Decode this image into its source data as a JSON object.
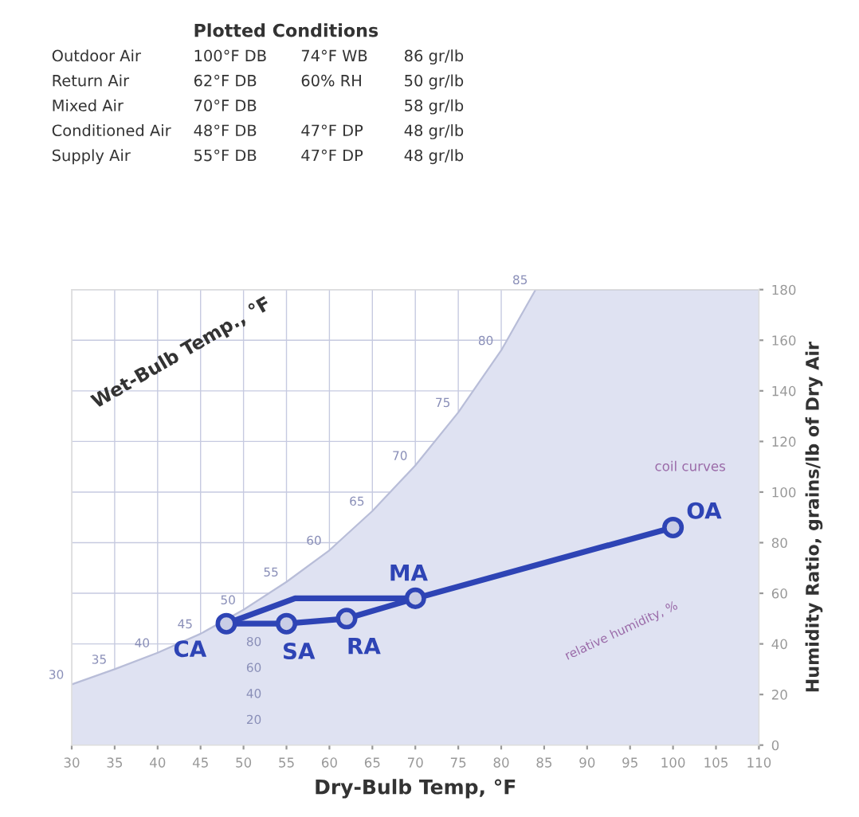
{
  "chart_data": {
    "type": "line",
    "xlabel": "Dry-Bulb Temp, °F",
    "ylabel": "Humidity Ratio, grains/lb of Dry Air",
    "xlim": [
      30,
      110
    ],
    "ylim": [
      0,
      180
    ],
    "xticks": [
      30,
      35,
      40,
      45,
      50,
      55,
      60,
      65,
      70,
      75,
      80,
      85,
      90,
      95,
      100,
      105,
      110
    ],
    "yticks": [
      0,
      20,
      40,
      60,
      80,
      100,
      120,
      140,
      160,
      180
    ],
    "grid": true,
    "legend": false,
    "series": [
      {
        "type": "area",
        "color": "#dfe2f2",
        "x": [
          30,
          35,
          40,
          45,
          50,
          55,
          60,
          65,
          70,
          75,
          80,
          84,
          110
        ],
        "values": [
          24,
          30,
          36.5,
          44,
          53.5,
          64.5,
          77,
          92.5,
          110.5,
          131.5,
          156,
          180,
          180
        ]
      },
      {
        "color": "#2e44b5",
        "marker": "none",
        "x": [
          100,
          70,
          56,
          48
        ],
        "values": [
          86,
          58,
          58,
          48
        ]
      },
      {
        "color": "#2e44b5",
        "marker": "none",
        "x": [
          48,
          55,
          62,
          70
        ],
        "values": [
          48,
          48,
          50,
          58
        ]
      },
      {
        "type": "scatter",
        "color": "#2e44b5",
        "marker": "circle",
        "x": [
          100,
          62,
          70,
          48,
          55
        ],
        "values": [
          86,
          50,
          58,
          48,
          48
        ]
      }
    ],
    "annotations": [
      "Plotted Conditions",
      "Outdoor Air\t100°F DB\t74°F WB\t86 gr/lb",
      "Return Air\t62°F DB\t60% RH\t50 gr/lb",
      "Mixed Air\t70°F DB\t\t58 gr/lb",
      "Conditioned Air\t48°F DB\t47°F DP\t48 gr/lb",
      "Supply Air\t55°F DB\t47°F DP\t48 gr/lb",
      "Wet-Bulb Temp., °F",
      "coil curves",
      "relative humidity, %",
      "80",
      "60",
      "40",
      "20",
      {
        "text": "OA",
        "x": 100,
        "y": 86
      },
      {
        "text": "RA",
        "x": 62,
        "y": 50
      },
      {
        "text": "MA",
        "x": 70,
        "y": 58
      },
      {
        "text": "CA",
        "x": 48,
        "y": 48
      },
      {
        "text": "SA",
        "x": 55,
        "y": 48
      },
      {
        "text": "30",
        "x": 30,
        "y": 24
      },
      {
        "text": "35",
        "x": 35,
        "y": 30
      },
      {
        "text": "40",
        "x": 40,
        "y": 36.5
      },
      {
        "text": "45",
        "x": 45,
        "y": 44
      },
      {
        "text": "50",
        "x": 50,
        "y": 53.5
      },
      {
        "text": "55",
        "x": 55,
        "y": 64.5
      },
      {
        "text": "60",
        "x": 60,
        "y": 77
      },
      {
        "text": "65",
        "x": 65,
        "y": 92.5
      },
      {
        "text": "70",
        "x": 70,
        "y": 110.5
      },
      {
        "text": "75",
        "x": 75,
        "y": 131.5
      },
      {
        "text": "80",
        "x": 80,
        "y": 156
      },
      {
        "text": "85",
        "x": 84,
        "y": 180
      }
    ]
  }
}
